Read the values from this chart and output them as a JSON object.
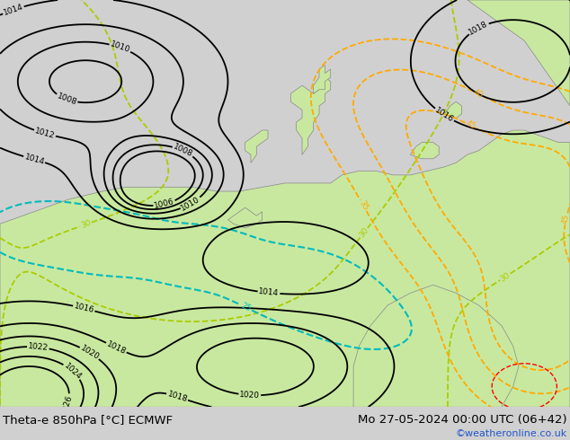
{
  "title_left": "Theta-e 850hPa [°C] ECMWF",
  "title_right": "Mo 27-05-2024 00:00 UTC (06+42)",
  "watermark": "©weatheronline.co.uk",
  "bg_color": "#d0d0d0",
  "land_color": "#c8e8a0",
  "sea_color": "#d0d0d0",
  "coast_color": "#888888",
  "isobar_color": "#000000",
  "theta_green_color": "#aacc00",
  "theta_cyan_color": "#00bbbb",
  "theta_orange_color": "#ffaa00",
  "theta_red_color": "#ff0000",
  "title_fontsize": 10,
  "watermark_color": "#2255cc",
  "figsize": [
    6.34,
    4.9
  ],
  "dpi": 100
}
